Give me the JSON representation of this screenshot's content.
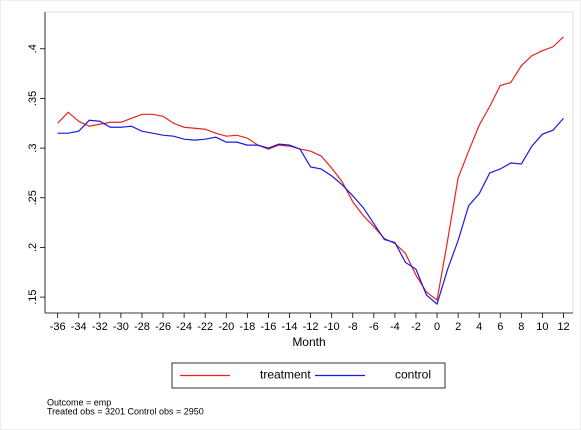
{
  "chart_data": {
    "type": "line",
    "x_label": "Month",
    "x": [
      -36,
      -35,
      -34,
      -33,
      -32,
      -31,
      -30,
      -29,
      -28,
      -27,
      -26,
      -25,
      -24,
      -23,
      -22,
      -21,
      -20,
      -19,
      -18,
      -17,
      -16,
      -15,
      -14,
      -13,
      -12,
      -11,
      -10,
      -9,
      -8,
      -7,
      -6,
      -5,
      -4,
      -3,
      -2,
      -1,
      0,
      1,
      2,
      3,
      4,
      5,
      6,
      7,
      8,
      9,
      10,
      11,
      12
    ],
    "series": [
      {
        "name": "treatment",
        "color": "#e8231e",
        "values": [
          0.325,
          0.336,
          0.327,
          0.322,
          0.324,
          0.326,
          0.326,
          0.33,
          0.334,
          0.334,
          0.332,
          0.325,
          0.321,
          0.32,
          0.319,
          0.315,
          0.312,
          0.313,
          0.31,
          0.303,
          0.299,
          0.303,
          0.302,
          0.299,
          0.297,
          0.292,
          0.28,
          0.266,
          0.246,
          0.232,
          0.221,
          0.209,
          0.204,
          0.194,
          0.172,
          0.155,
          0.147,
          0.207,
          0.27,
          0.297,
          0.323,
          0.342,
          0.363,
          0.366,
          0.383,
          0.393,
          0.398,
          0.402,
          0.412
        ]
      },
      {
        "name": "control",
        "color": "#1a1ae6",
        "values": [
          0.315,
          0.315,
          0.317,
          0.328,
          0.327,
          0.321,
          0.321,
          0.322,
          0.317,
          0.315,
          0.313,
          0.312,
          0.309,
          0.308,
          0.309,
          0.311,
          0.306,
          0.306,
          0.303,
          0.303,
          0.3,
          0.304,
          0.303,
          0.299,
          0.281,
          0.279,
          0.272,
          0.263,
          0.252,
          0.24,
          0.224,
          0.208,
          0.205,
          0.185,
          0.178,
          0.152,
          0.143,
          0.178,
          0.207,
          0.242,
          0.254,
          0.275,
          0.279,
          0.285,
          0.284,
          0.302,
          0.314,
          0.318,
          0.33
        ]
      }
    ],
    "xlim": [
      -37.2,
      12.9
    ],
    "xticks": [
      -36,
      -34,
      -32,
      -30,
      -28,
      -26,
      -24,
      -22,
      -20,
      -18,
      -16,
      -14,
      -12,
      -10,
      -8,
      -6,
      -4,
      -2,
      0,
      2,
      4,
      6,
      8,
      10,
      12
    ],
    "ylim": [
      0.134,
      0.437
    ],
    "yticks": [
      {
        "value": 0.15,
        "label": ".15"
      },
      {
        "value": 0.2,
        "label": ".2"
      },
      {
        "value": 0.25,
        "label": ".25"
      },
      {
        "value": 0.3,
        "label": ".3"
      },
      {
        "value": 0.35,
        "label": ".35"
      },
      {
        "value": 0.4,
        "label": ".4"
      }
    ],
    "notes": [
      "Outcome = emp",
      "Treated obs = 3201 Control obs = 2950"
    ]
  }
}
